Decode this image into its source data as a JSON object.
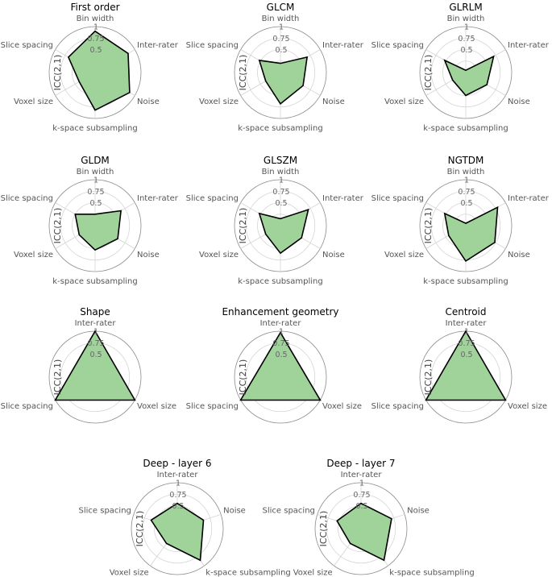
{
  "figure": {
    "ylabel": "ICC(2,1)"
  },
  "palette": {
    "fill": "#9fd39a",
    "edge": "#000000",
    "grid": "#d4d4d4",
    "frame": "#8a8a8a"
  },
  "chart_data": [
    {
      "type": "radar",
      "title": "First order",
      "ylabel": "ICC(2,1)",
      "rlim": [
        0,
        1
      ],
      "rticks": [
        "0.5",
        "0.75",
        "1"
      ],
      "axes": [
        "Bin width",
        "Inter-rater",
        "Noise",
        "k-space subsampling",
        "Voxel size",
        "Slice spacing"
      ],
      "values": [
        0.9,
        0.83,
        0.87,
        0.82,
        0.4,
        0.67
      ]
    },
    {
      "type": "radar",
      "title": "GLCM",
      "ylabel": "ICC(2,1)",
      "rlim": [
        0,
        1
      ],
      "rticks": [
        "0.5",
        "0.75",
        "1"
      ],
      "axes": [
        "Bin width",
        "Inter-rater",
        "Noise",
        "k-space subsampling",
        "Voxel size",
        "Slice spacing"
      ],
      "values": [
        0.2,
        0.67,
        0.57,
        0.68,
        0.37,
        0.53
      ]
    },
    {
      "type": "radar",
      "title": "GLRLM",
      "ylabel": "ICC(2,1)",
      "rlim": [
        0,
        1
      ],
      "rticks": [
        "0.5",
        "0.75",
        "1"
      ],
      "axes": [
        "Bin width",
        "Inter-rater",
        "Noise",
        "k-space subsampling",
        "Voxel size",
        "Slice spacing"
      ],
      "values": [
        0.05,
        0.7,
        0.53,
        0.5,
        0.33,
        0.53
      ]
    },
    {
      "type": "radar",
      "title": "GLDM",
      "ylabel": "ICC(2,1)",
      "rlim": [
        0,
        1
      ],
      "rticks": [
        "0.5",
        "0.75",
        "1"
      ],
      "axes": [
        "Bin width",
        "Inter-rater",
        "Noise",
        "k-space subsampling",
        "Voxel size",
        "Slice spacing"
      ],
      "values": [
        0.25,
        0.65,
        0.57,
        0.53,
        0.4,
        0.5
      ]
    },
    {
      "type": "radar",
      "title": "GLSZM",
      "ylabel": "ICC(2,1)",
      "rlim": [
        0,
        1
      ],
      "rticks": [
        "0.5",
        "0.75",
        "1"
      ],
      "axes": [
        "Bin width",
        "Inter-rater",
        "Noise",
        "k-space subsampling",
        "Voxel size",
        "Slice spacing"
      ],
      "values": [
        0.15,
        0.7,
        0.53,
        0.6,
        0.37,
        0.53
      ]
    },
    {
      "type": "radar",
      "title": "NGTDM",
      "ylabel": "ICC(2,1)",
      "rlim": [
        0,
        1
      ],
      "rticks": [
        "0.5",
        "0.75",
        "1"
      ],
      "axes": [
        "Bin width",
        "Inter-rater",
        "Noise",
        "k-space subsampling",
        "Voxel size",
        "Slice spacing"
      ],
      "values": [
        0.05,
        0.8,
        0.73,
        0.77,
        0.43,
        0.53
      ]
    },
    {
      "type": "radar",
      "title": "Shape",
      "ylabel": "ICC(2,1)",
      "rlim": [
        0,
        1
      ],
      "rticks": [
        "0.5",
        "0.75",
        "1"
      ],
      "axes": [
        "Inter-rater",
        "Voxel size",
        "Slice spacing"
      ],
      "values": [
        1.0,
        1.0,
        1.0
      ]
    },
    {
      "type": "radar",
      "title": "Enhancement geometry",
      "ylabel": "ICC(2,1)",
      "rlim": [
        0,
        1
      ],
      "rticks": [
        "0.5",
        "0.75",
        "1"
      ],
      "axes": [
        "Inter-rater",
        "Voxel size",
        "Slice spacing"
      ],
      "values": [
        0.97,
        1.0,
        1.0
      ]
    },
    {
      "type": "radar",
      "title": "Centroid",
      "ylabel": "ICC(2,1)",
      "rlim": [
        0,
        1
      ],
      "rticks": [
        "0.5",
        "0.75",
        "1"
      ],
      "axes": [
        "Inter-rater",
        "Voxel size",
        "Slice spacing"
      ],
      "values": [
        1.0,
        1.0,
        1.0
      ]
    },
    {
      "type": "radar",
      "title": "Deep - layer 6",
      "ylabel": "ICC(2,1)",
      "rlim": [
        0,
        1
      ],
      "rticks": [
        "0.5",
        "0.75",
        "1"
      ],
      "axes": [
        "Inter-rater",
        "Noise",
        "k-space subsampling",
        "Voxel size",
        "Slice spacing"
      ],
      "values": [
        0.55,
        0.6,
        0.85,
        0.4,
        0.6
      ]
    },
    {
      "type": "radar",
      "title": "Deep - layer 7",
      "ylabel": "ICC(2,1)",
      "rlim": [
        0,
        1
      ],
      "rticks": [
        "0.5",
        "0.75",
        "1"
      ],
      "axes": [
        "Inter-rater",
        "Noise",
        "k-space subsampling",
        "Voxel size",
        "Slice spacing"
      ],
      "values": [
        0.55,
        0.7,
        0.85,
        0.4,
        0.55
      ]
    }
  ]
}
